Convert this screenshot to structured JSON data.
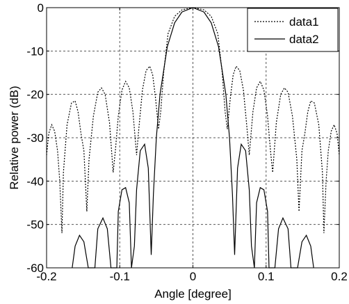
{
  "chart_data": {
    "type": "line",
    "xlabel": "Angle [degree]",
    "ylabel": "Relative power (dB)",
    "xlim": [
      -0.2,
      0.2
    ],
    "ylim": [
      -60,
      0
    ],
    "x_ticks": [
      -0.2,
      -0.1,
      0,
      0.1,
      0.2
    ],
    "x_tick_labels": [
      "-0.2",
      "-0.1",
      "0",
      "0.1",
      "0.2"
    ],
    "y_ticks": [
      0,
      -10,
      -20,
      -30,
      -40,
      -50,
      -60
    ],
    "y_tick_labels": [
      "0",
      "-10",
      "-20",
      "-30",
      "-40",
      "-50",
      "-60"
    ],
    "grid": true,
    "grid_style": "dashed",
    "legend_position": "top-right",
    "colors": {
      "axis": "#000000",
      "grid": "#555555",
      "series": "#000000"
    },
    "series": [
      {
        "name": "data1",
        "style": "dotted",
        "points": [
          [
            -0.2,
            -34
          ],
          [
            -0.197,
            -29
          ],
          [
            -0.193,
            -27
          ],
          [
            -0.189,
            -28.5
          ],
          [
            -0.185,
            -33
          ],
          [
            -0.182,
            -40
          ],
          [
            -0.179,
            -52
          ],
          [
            -0.177,
            -38
          ],
          [
            -0.172,
            -27
          ],
          [
            -0.166,
            -22
          ],
          [
            -0.161,
            -21.5
          ],
          [
            -0.157,
            -24
          ],
          [
            -0.153,
            -29
          ],
          [
            -0.149,
            -33
          ],
          [
            -0.145,
            -47
          ],
          [
            -0.142,
            -35
          ],
          [
            -0.136,
            -25
          ],
          [
            -0.13,
            -19.5
          ],
          [
            -0.125,
            -18.5
          ],
          [
            -0.12,
            -20
          ],
          [
            -0.114,
            -26.5
          ],
          [
            -0.109,
            -38
          ],
          [
            -0.106,
            -33
          ],
          [
            -0.102,
            -25
          ],
          [
            -0.097,
            -19
          ],
          [
            -0.092,
            -17
          ],
          [
            -0.087,
            -18.5
          ],
          [
            -0.082,
            -24
          ],
          [
            -0.077,
            -34
          ],
          [
            -0.074,
            -28
          ],
          [
            -0.069,
            -19
          ],
          [
            -0.064,
            -14.5
          ],
          [
            -0.059,
            -13.5
          ],
          [
            -0.055,
            -15.5
          ],
          [
            -0.051,
            -21
          ],
          [
            -0.047,
            -28
          ],
          [
            -0.044,
            -24
          ],
          [
            -0.04,
            -15
          ],
          [
            -0.034,
            -6
          ],
          [
            -0.025,
            -2
          ],
          [
            -0.015,
            -0.5
          ],
          [
            0,
            0
          ],
          [
            0.015,
            -0.5
          ],
          [
            0.025,
            -2
          ],
          [
            0.034,
            -6
          ],
          [
            0.04,
            -15
          ],
          [
            0.044,
            -24
          ],
          [
            0.047,
            -28
          ],
          [
            0.051,
            -21
          ],
          [
            0.055,
            -15.5
          ],
          [
            0.059,
            -13.5
          ],
          [
            0.064,
            -14.5
          ],
          [
            0.069,
            -19
          ],
          [
            0.074,
            -28
          ],
          [
            0.077,
            -34
          ],
          [
            0.082,
            -24
          ],
          [
            0.087,
            -18.5
          ],
          [
            0.092,
            -17
          ],
          [
            0.097,
            -19
          ],
          [
            0.102,
            -25
          ],
          [
            0.106,
            -33
          ],
          [
            0.109,
            -38
          ],
          [
            0.114,
            -26.5
          ],
          [
            0.12,
            -20
          ],
          [
            0.125,
            -18.5
          ],
          [
            0.13,
            -19.5
          ],
          [
            0.136,
            -25
          ],
          [
            0.142,
            -35
          ],
          [
            0.145,
            -47
          ],
          [
            0.149,
            -33
          ],
          [
            0.153,
            -29
          ],
          [
            0.157,
            -24
          ],
          [
            0.161,
            -21.5
          ],
          [
            0.166,
            -22
          ],
          [
            0.172,
            -27
          ],
          [
            0.177,
            -38
          ],
          [
            0.179,
            -52
          ],
          [
            0.182,
            -40
          ],
          [
            0.185,
            -33
          ],
          [
            0.189,
            -28.5
          ],
          [
            0.193,
            -27
          ],
          [
            0.197,
            -29
          ],
          [
            0.2,
            -34
          ]
        ]
      },
      {
        "name": "data2",
        "style": "solid",
        "points": [
          [
            -0.165,
            -60
          ],
          [
            -0.161,
            -55
          ],
          [
            -0.155,
            -52.5
          ],
          [
            -0.149,
            -54
          ],
          [
            -0.143,
            -60
          ],
          [
            -0.134,
            -60
          ],
          [
            -0.13,
            -51
          ],
          [
            -0.123,
            -48.5
          ],
          [
            -0.117,
            -51
          ],
          [
            -0.112,
            -60
          ],
          [
            -0.104,
            -60
          ],
          [
            -0.102,
            -47
          ],
          [
            -0.097,
            -42
          ],
          [
            -0.092,
            -41.5
          ],
          [
            -0.087,
            -45
          ],
          [
            -0.084,
            -60
          ],
          [
            -0.08,
            -55
          ],
          [
            -0.077,
            -42
          ],
          [
            -0.072,
            -33
          ],
          [
            -0.066,
            -31.5
          ],
          [
            -0.061,
            -37
          ],
          [
            -0.057,
            -57
          ],
          [
            -0.054,
            -43
          ],
          [
            -0.05,
            -30
          ],
          [
            -0.045,
            -20
          ],
          [
            -0.035,
            -9
          ],
          [
            -0.025,
            -3.5
          ],
          [
            -0.015,
            -1
          ],
          [
            0,
            0
          ],
          [
            0.015,
            -1
          ],
          [
            0.025,
            -3.5
          ],
          [
            0.035,
            -9
          ],
          [
            0.045,
            -20
          ],
          [
            0.05,
            -30
          ],
          [
            0.054,
            -43
          ],
          [
            0.057,
            -57
          ],
          [
            0.061,
            -37
          ],
          [
            0.066,
            -31.5
          ],
          [
            0.072,
            -33
          ],
          [
            0.077,
            -42
          ],
          [
            0.08,
            -55
          ],
          [
            0.084,
            -60
          ],
          [
            0.087,
            -45
          ],
          [
            0.092,
            -41.5
          ],
          [
            0.097,
            -42
          ],
          [
            0.102,
            -47
          ],
          [
            0.104,
            -60
          ],
          [
            0.112,
            -60
          ],
          [
            0.117,
            -51
          ],
          [
            0.123,
            -48.5
          ],
          [
            0.13,
            -51
          ],
          [
            0.134,
            -60
          ],
          [
            0.143,
            -60
          ],
          [
            0.149,
            -54
          ],
          [
            0.155,
            -52.5
          ],
          [
            0.161,
            -55
          ],
          [
            0.165,
            -60
          ]
        ]
      }
    ]
  }
}
